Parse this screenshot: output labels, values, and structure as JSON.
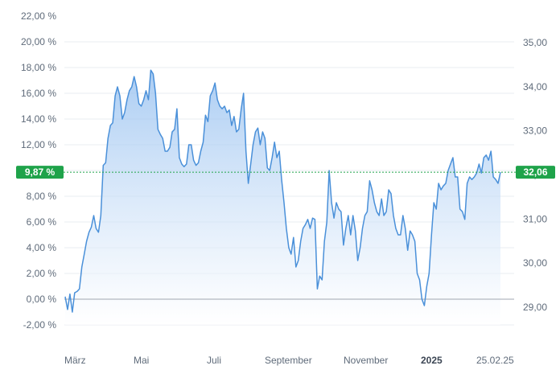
{
  "chart_data": {
    "type": "area",
    "title": "",
    "xlabel": "",
    "ylabel": "",
    "x_ticks": [
      {
        "label": "März",
        "bold": false
      },
      {
        "label": "Mai",
        "bold": false
      },
      {
        "label": "Juli",
        "bold": false
      },
      {
        "label": "September",
        "bold": false
      },
      {
        "label": "November",
        "bold": false
      },
      {
        "label": "2025",
        "bold": true
      },
      {
        "label": "25.02.25",
        "bold": false
      }
    ],
    "y_left": {
      "ticks": [
        "22,00 %",
        "20,00 %",
        "18,00 %",
        "16,00 %",
        "14,00 %",
        "12,00 %",
        "10,00 %",
        "8,00 %",
        "6,00 %",
        "4,00 %",
        "2,00 %",
        "0,00 %",
        "-2,00 %"
      ],
      "range": [
        -2,
        22
      ]
    },
    "y_right": {
      "ticks": [
        "35,00",
        "34,00",
        "33,00",
        "32,00",
        "31,00",
        "30,00",
        "29,00"
      ],
      "range": [
        29,
        35
      ]
    },
    "current": {
      "percent_label": "9,87 %",
      "price_label": "32,06",
      "value": 9.87
    },
    "baseline_value": 0,
    "grid": true,
    "colors": {
      "line": "#4a90d9",
      "fill_top": "#8fbcef",
      "badge": "#1fa34a",
      "grid": "#e8ecf0",
      "baseline": "#a0a7b0"
    },
    "series": [
      {
        "values": [
          0.2,
          -0.8,
          0.4,
          -1.0,
          0.5,
          0.6,
          0.8,
          2.5,
          3.5,
          4.5,
          5.2,
          5.6,
          6.5,
          5.5,
          5.2,
          6.5,
          10.4,
          10.6,
          12.5,
          13.5,
          13.7,
          15.8,
          16.5,
          15.8,
          14.0,
          14.5,
          15.5,
          16.2,
          16.5,
          17.3,
          16.5,
          15.2,
          15.0,
          15.5,
          16.2,
          15.5,
          17.8,
          17.5,
          16.0,
          13.2,
          12.8,
          12.5,
          11.5,
          11.5,
          11.8,
          13.0,
          13.2,
          14.8,
          11.0,
          10.5,
          10.3,
          10.5,
          12.0,
          12.0,
          10.8,
          10.4,
          10.6,
          11.5,
          12.2,
          14.3,
          13.8,
          15.8,
          16.2,
          16.8,
          15.5,
          15.0,
          14.8,
          15.0,
          14.5,
          14.7,
          13.5,
          14.2,
          13.0,
          13.2,
          14.8,
          16.0,
          11.5,
          9.0,
          10.5,
          12.0,
          13.0,
          13.3,
          12.0,
          13.0,
          12.5,
          10.2,
          10.0,
          11.0,
          12.2,
          11.0,
          11.5,
          9.3,
          7.5,
          5.5,
          4.0,
          3.5,
          4.8,
          2.5,
          3.0,
          4.5,
          5.5,
          5.8,
          6.2,
          5.5,
          6.3,
          6.2,
          0.8,
          1.8,
          1.5,
          4.5,
          6.0,
          10.0,
          7.5,
          6.3,
          7.5,
          7.0,
          6.8,
          4.2,
          5.5,
          6.5,
          5.0,
          6.5,
          5.3,
          3.0,
          4.0,
          5.5,
          6.5,
          6.8,
          9.2,
          8.5,
          7.5,
          6.8,
          6.5,
          7.8,
          6.5,
          6.8,
          8.5,
          8.2,
          6.5,
          5.5,
          5.0,
          5.0,
          6.5,
          5.5,
          3.8,
          5.3,
          5.0,
          4.5,
          2.0,
          1.5,
          0.0,
          -0.5,
          1.0,
          2.0,
          5.0,
          7.5,
          7.0,
          9.0,
          8.5,
          8.8,
          9.0,
          10.0,
          10.5,
          11.0,
          9.5,
          9.5,
          7.0,
          6.8,
          6.2,
          9.0,
          9.5,
          9.3,
          9.5,
          9.8,
          10.5,
          9.8,
          11.0,
          11.2,
          10.8,
          11.5,
          9.5,
          9.3,
          9.0,
          9.87
        ]
      }
    ]
  }
}
